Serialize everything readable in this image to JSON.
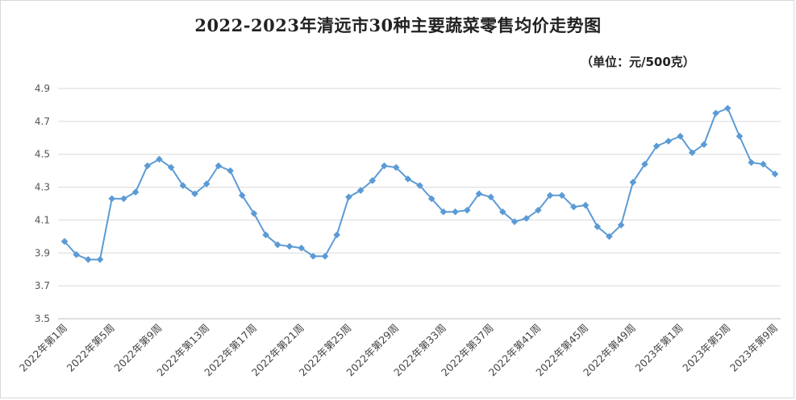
{
  "chart_data": {
    "type": "line",
    "title": "2022-2023年清远市30种主要蔬菜零售均价走势图",
    "unit": "（单位：元/500克）",
    "ylim": [
      3.5,
      4.9
    ],
    "yticks": [
      "4.9",
      "4.7",
      "4.5",
      "4.3",
      "4.1",
      "3.9",
      "3.7",
      "3.5"
    ],
    "grid": true,
    "legend": "none",
    "xtick_labels": [
      "2022年第1周",
      "2022年第5周",
      "2022年第9周",
      "2022年第13周",
      "2022年第17周",
      "2022年第21周",
      "2022年第25周",
      "2022年第29周",
      "2022年第33周",
      "2022年第37周",
      "2022年第41周",
      "2022年第45周",
      "2022年第49周",
      "2023年第1周",
      "2023年第5周",
      "2023年第9周"
    ],
    "series": [
      {
        "color": "#5b9bd5",
        "values": [
          3.97,
          3.89,
          3.86,
          3.86,
          4.23,
          4.23,
          4.27,
          4.43,
          4.47,
          4.42,
          4.31,
          4.26,
          4.32,
          4.43,
          4.4,
          4.25,
          4.14,
          4.01,
          3.95,
          3.94,
          3.93,
          3.88,
          3.88,
          4.01,
          4.24,
          4.28,
          4.34,
          4.43,
          4.42,
          4.35,
          4.31,
          4.23,
          4.15,
          4.15,
          4.16,
          4.26,
          4.24,
          4.15,
          4.09,
          4.11,
          4.16,
          4.25,
          4.25,
          4.18,
          4.19,
          4.06,
          4.0,
          4.07,
          4.33,
          4.44,
          4.55,
          4.58,
          4.61,
          4.51,
          4.56,
          4.75,
          4.78,
          4.61,
          4.45,
          4.44,
          4.38
        ]
      }
    ]
  }
}
